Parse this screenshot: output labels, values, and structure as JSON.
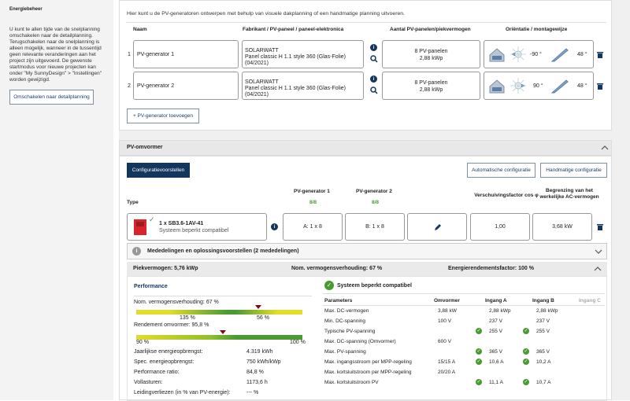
{
  "sidebar": {
    "title": "Energiebeheer",
    "description": "U kunt te allen tijde van de snelplanning omschakelen naar de detailplanning. Terugschakelen naar de snelplanning is alleen mogelijk, wanneer in de tussentijd geen relevante veranderingen aan het project zijn uitgevoerd. De gewenste startmodus voor nieuwe projecten kan onder \"My SunnyDesign\" > \"Instellingen\" worden gewijzigd.",
    "switch_button": "Omschakelen naar detailplanning"
  },
  "generators": {
    "intro": "Hier kunt u de PV-generatoren ontwerpen met behulp van visuele dakplanning of een handmatige planning uitvoeren.",
    "headers": {
      "name": "Naam",
      "manufacturer": "Fabrikant / PV-paneel / paneel-elektronica",
      "count": "Aantal PV-panelen/piekvermogen",
      "orientation": "Oriëntatie / montagewijze"
    },
    "rows": [
      {
        "index": "1",
        "name": "PV-generator 1",
        "maker": "SOLARWATT",
        "panel": "Panel classic H 1.1 style 360 (Glas-Folie) (04/2021)",
        "panels": "8 PV-panelen",
        "power": "2,88 kWp",
        "azimuth": "-90 °",
        "tilt": "48 °"
      },
      {
        "index": "2",
        "name": "PV-generator 2",
        "maker": "SOLARWATT",
        "panel": "Panel classic H 1.1 style 360 (Glas-Folie) (04/2021)",
        "panels": "8 PV-panelen",
        "power": "2,88 kWp",
        "azimuth": "90 °",
        "tilt": "48 °"
      }
    ],
    "add_button": "+ PV-generator toevoegen"
  },
  "inverter": {
    "section_title": "PV-omvormer",
    "config_suggestions": "Configuratievoorstellen",
    "auto_config": "Automatische configuratie",
    "manual_config": "Handmatige configuratie",
    "col_type": "Type",
    "col_gen1": "PV-generator 1",
    "col_gen1_val": "8/8",
    "col_gen2": "PV-generator 2",
    "col_gen2_val": "8/8",
    "col_shift": "Verschuivingsfactor cos φ",
    "col_limit": "Begrenzing van het werkelijke AC-vermogen",
    "device_name": "1 x SB3.6-1AV-41",
    "device_status": "Systeem beperkt compatibel",
    "a_string": "A: 1 x 8",
    "b_string": "B: 1 x 8",
    "cos_phi": "1,00",
    "ac_limit": "3,68 kW",
    "messages": "Mededelingen en oplossingsvoorstellen (2 mededelingen)"
  },
  "summary": {
    "peak": "Piekvermogen: 5,76 kWp",
    "ratio": "Nom. vermogensverhouding: 67 %",
    "yield_factor": "Energierendementsfactor: 100 %"
  },
  "performance": {
    "title": "Performance",
    "nom_ratio_label": "Nom. vermogensverhouding: 67 %",
    "bar1_left": "135 %",
    "bar1_right": "56 %",
    "efficiency_label": "Rendement omvormer: 95,8 %",
    "bar2_left": "90 %",
    "bar2_right": "100 %",
    "rows": [
      {
        "label": "Jaarlijkse energieopbrengst:",
        "value": "4.319 kWh"
      },
      {
        "label": "Spec. energieopbrengst:",
        "value": "750 kWh/kWp"
      },
      {
        "label": "Performance ratio:",
        "value": "84,8 %"
      },
      {
        "label": "Vollasturen:",
        "value": "1173,6 h"
      },
      {
        "label": "Leidingverliezen (in % van PV-energie):",
        "value": "--- %"
      }
    ]
  },
  "compat": {
    "title": "Systeem beperkt compatibel",
    "headers": [
      "Parameters",
      "Omvormer",
      "Ingang A",
      "Ingang B",
      "Ingang C"
    ],
    "rows": [
      {
        "p": "Max. DC-vermogen",
        "inv": "3,88 kW",
        "a": "2,88 kWp",
        "b": "2,88 kWp",
        "ok": false
      },
      {
        "p": "Min. DC-spanning",
        "inv": "100 V",
        "a": "237 V",
        "b": "237 V",
        "ok": false
      },
      {
        "p": "Typische PV-spanning",
        "inv": "",
        "a": "255 V",
        "b": "255 V",
        "ok": true
      },
      {
        "p": "Max. DC-spanning (Omvormer)",
        "inv": "600 V",
        "a": "",
        "b": "",
        "ok": false
      },
      {
        "p": "Max. PV-spanning",
        "inv": "",
        "a": "365 V",
        "b": "365 V",
        "ok": true
      },
      {
        "p": "Max. ingangsstroom per MPP-regeling",
        "inv": "15/15 A",
        "a": "10,6 A",
        "b": "10,2 A",
        "ok": true
      },
      {
        "p": "Max. kortsluitstroom per MPP-regeling",
        "inv": "20/20 A",
        "a": "",
        "b": "",
        "ok": false
      },
      {
        "p": "Max. kortsluitstroom PV",
        "inv": "",
        "a": "11,1 A",
        "b": "10,7 A",
        "ok": true
      }
    ]
  },
  "colors": {
    "accent": "#13365e",
    "ok": "#4a9a34",
    "bar_yellow": "#e3dc2a",
    "bar_green": "#4a9a34"
  }
}
